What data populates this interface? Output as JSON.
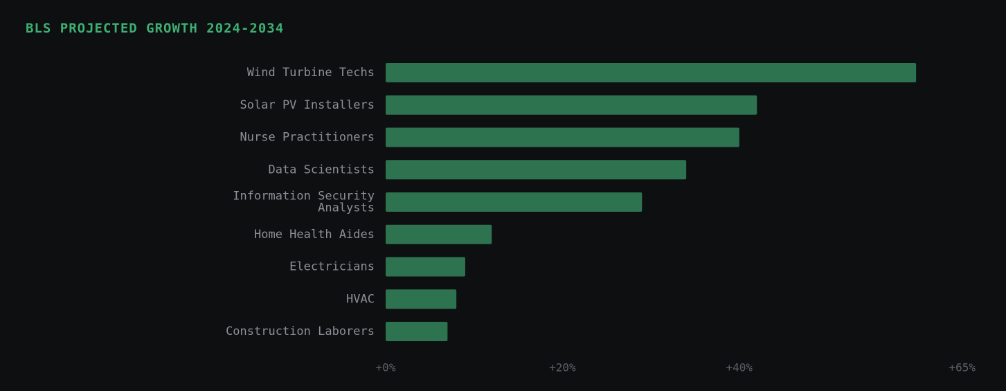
{
  "chart_data": {
    "type": "bar",
    "orientation": "horizontal",
    "title": "BLS PROJECTED GROWTH 2024-2034",
    "categories": [
      "Wind Turbine Techs",
      "Solar PV Installers",
      "Nurse Practitioners",
      "Data Scientists",
      "Information Security Analysts",
      "Home Health Aides",
      "Electricians",
      "HVAC",
      "Construction Laborers"
    ],
    "category_lines": [
      [
        "Wind Turbine Techs"
      ],
      [
        "Solar PV Installers"
      ],
      [
        "Nurse Practitioners"
      ],
      [
        "Data Scientists"
      ],
      [
        "Information Security",
        "Analysts"
      ],
      [
        "Home Health Aides"
      ],
      [
        "Electricians"
      ],
      [
        "HVAC"
      ],
      [
        "Construction Laborers"
      ]
    ],
    "values": [
      60,
      42,
      40,
      34,
      29,
      12,
      9,
      8,
      7
    ],
    "ticks": [
      {
        "value": 0,
        "label": "+0%"
      },
      {
        "value": 20,
        "label": "+20%"
      },
      {
        "value": 40,
        "label": "+40%"
      },
      {
        "value": 65,
        "label": "+65%"
      }
    ],
    "xlim": [
      0,
      65
    ],
    "grid": false,
    "legend": "none",
    "colors": {
      "bar": "#2e7350",
      "title": "#3fae72",
      "label": "#8c9196",
      "tick": "#5b6066",
      "background": "#0d0f11"
    }
  }
}
